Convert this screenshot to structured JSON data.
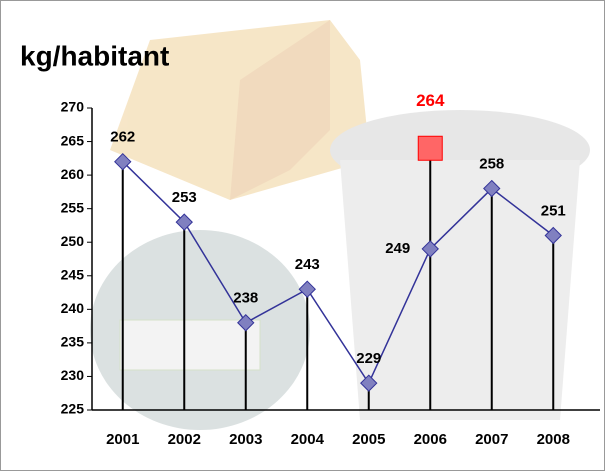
{
  "chart_data": {
    "type": "line",
    "title": "kg/habitant",
    "categories": [
      "2001",
      "2002",
      "2003",
      "2004",
      "2005",
      "2006",
      "2007",
      "2008"
    ],
    "series": [
      {
        "color": "#333399",
        "marker_color": "#8080c0",
        "values": [
          262,
          253,
          238,
          243,
          229,
          249,
          258,
          251
        ]
      },
      {
        "color": "#ff0000",
        "marker_color": "#ff6666",
        "values": [
          null,
          null,
          null,
          null,
          null,
          264,
          null,
          null
        ]
      }
    ],
    "ylim": [
      225,
      270
    ],
    "yticks": [
      225,
      230,
      235,
      240,
      245,
      250,
      255,
      260,
      265,
      270
    ],
    "drop_lines": true
  }
}
